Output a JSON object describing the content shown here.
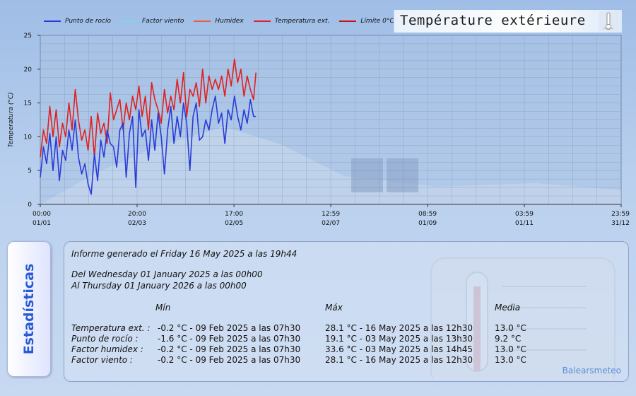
{
  "header": {
    "title": "Température extérieure"
  },
  "legend": [
    {
      "label": "Punto de rocío",
      "color": "#2a3bd8"
    },
    {
      "label": "Factor viento",
      "color": "#7fd4e8"
    },
    {
      "label": "Humidex",
      "color": "#e8603a"
    },
    {
      "label": "Temperatura ext.",
      "color": "#e02020"
    },
    {
      "label": "Límite 0°C",
      "color": "#cc1111"
    }
  ],
  "chart_data": {
    "type": "line",
    "ylabel": "Temperatura (°C)",
    "xlabel": "",
    "ylim": [
      0,
      25
    ],
    "yticks": [
      0,
      5,
      10,
      15,
      20,
      25
    ],
    "xrange_days": [
      0,
      365
    ],
    "grid": true,
    "x_tick_labels": [
      {
        "time": "00:00",
        "date": "01/01",
        "day": 0
      },
      {
        "time": "20:00",
        "date": "02/03",
        "day": 60.83
      },
      {
        "time": "17:00",
        "date": "02/05",
        "day": 121.71
      },
      {
        "time": "12:59",
        "date": "02/07",
        "day": 182.54
      },
      {
        "time": "08:59",
        "date": "01/09",
        "day": 243.37
      },
      {
        "time": "03:59",
        "date": "01/11",
        "day": 304.17
      },
      {
        "time": "23:59",
        "date": "31/12",
        "day": 365
      }
    ],
    "series": [
      {
        "name": "Temperatura ext.",
        "color": "#e02020",
        "x_days": [
          0,
          2,
          4,
          6,
          8,
          10,
          12,
          14,
          16,
          18,
          20,
          22,
          24,
          26,
          28,
          30,
          32,
          34,
          36,
          38,
          40,
          42,
          44,
          46,
          48,
          50,
          52,
          54,
          56,
          58,
          60,
          62,
          64,
          66,
          68,
          70,
          72,
          74,
          76,
          78,
          80,
          82,
          84,
          86,
          88,
          90,
          92,
          94,
          96,
          98,
          100,
          102,
          104,
          106,
          108,
          110,
          112,
          114,
          116,
          118,
          120,
          122,
          124,
          126,
          128,
          130,
          132,
          134,
          135.5
        ],
        "values": [
          7.0,
          11.0,
          9.0,
          14.5,
          10.0,
          14.0,
          8.5,
          12.0,
          10.0,
          15.0,
          11.0,
          17.0,
          12.5,
          9.5,
          11.0,
          8.0,
          13.0,
          7.0,
          13.5,
          10.5,
          12.0,
          9.0,
          16.5,
          12.5,
          14.0,
          15.5,
          11.0,
          15.0,
          12.5,
          16.0,
          14.0,
          17.5,
          13.0,
          16.0,
          11.0,
          18.0,
          15.5,
          14.0,
          12.0,
          17.0,
          13.5,
          16.0,
          14.0,
          18.5,
          15.0,
          19.5,
          13.0,
          17.0,
          16.0,
          18.0,
          14.5,
          20.0,
          15.0,
          19.0,
          17.0,
          18.5,
          17.0,
          19.0,
          16.0,
          20.0,
          17.5,
          21.5,
          18.0,
          20.0,
          16.0,
          19.0,
          17.0,
          15.5,
          19.5
        ]
      },
      {
        "name": "Punto de rocío",
        "color": "#2a3bd8",
        "x_days": [
          0,
          2,
          4,
          6,
          8,
          10,
          12,
          14,
          16,
          18,
          20,
          22,
          24,
          26,
          28,
          30,
          32,
          34,
          36,
          38,
          40,
          42,
          44,
          46,
          48,
          50,
          52,
          54,
          56,
          58,
          60,
          62,
          64,
          66,
          68,
          70,
          72,
          74,
          76,
          78,
          80,
          82,
          84,
          86,
          88,
          90,
          92,
          94,
          96,
          98,
          100,
          102,
          104,
          106,
          108,
          110,
          112,
          114,
          116,
          118,
          120,
          122,
          124,
          126,
          128,
          130,
          132,
          134,
          135.5
        ],
        "values": [
          4.0,
          8.5,
          6.0,
          10.5,
          5.0,
          10.0,
          3.5,
          8.0,
          6.5,
          11.0,
          8.0,
          12.5,
          7.0,
          4.5,
          6.0,
          3.0,
          1.5,
          7.5,
          3.5,
          9.5,
          7.0,
          11.0,
          9.0,
          8.5,
          5.5,
          11.0,
          12.0,
          4.0,
          10.5,
          13.0,
          2.5,
          14.0,
          10.0,
          11.0,
          6.5,
          12.5,
          8.0,
          13.5,
          10.0,
          4.5,
          11.0,
          14.5,
          9.0,
          13.0,
          10.0,
          15.0,
          12.0,
          5.0,
          13.0,
          15.0,
          9.5,
          10.0,
          12.5,
          11.0,
          14.0,
          16.0,
          12.0,
          13.5,
          9.0,
          14.0,
          12.5,
          16.0,
          13.0,
          11.0,
          14.0,
          12.0,
          15.5,
          13.0,
          13.0
        ]
      }
    ]
  },
  "stats": {
    "side_label": "Estadísticas",
    "generated": "Informe generado el Friday 16 May 2025 a las 19h44",
    "from": "Del Wednesday 01 January 2025 a las 00h00",
    "to": "Al Thursday 01 January 2026 a las 00h00",
    "columns": [
      "Mín",
      "Máx",
      "Media"
    ],
    "rows": [
      {
        "label": "Temperatura ext. :",
        "min": "-0.2 °C - 09 Feb 2025 a las 07h30",
        "max": "28.1 °C - 16 May 2025 a las 12h30",
        "avg": "13.0 °C"
      },
      {
        "label": "Punto de rocío :",
        "min": "-1.6 °C - 09 Feb 2025 a las 07h30",
        "max": "19.1 °C - 03 May 2025 a las 13h30",
        "avg": "9.2 °C"
      },
      {
        "label": "Factor humidex :",
        "min": "-0.2 °C - 09 Feb 2025 a las 07h30",
        "max": "33.6 °C - 03 May 2025 a las 14h45",
        "avg": "13.0 °C"
      },
      {
        "label": "Factor viento :",
        "min": "-0.2 °C - 09 Feb 2025 a las 07h30",
        "max": "28.1 °C - 16 May 2025 a las 12h30",
        "avg": "13.0 °C"
      }
    ],
    "brand": "Balearsmeteo"
  }
}
